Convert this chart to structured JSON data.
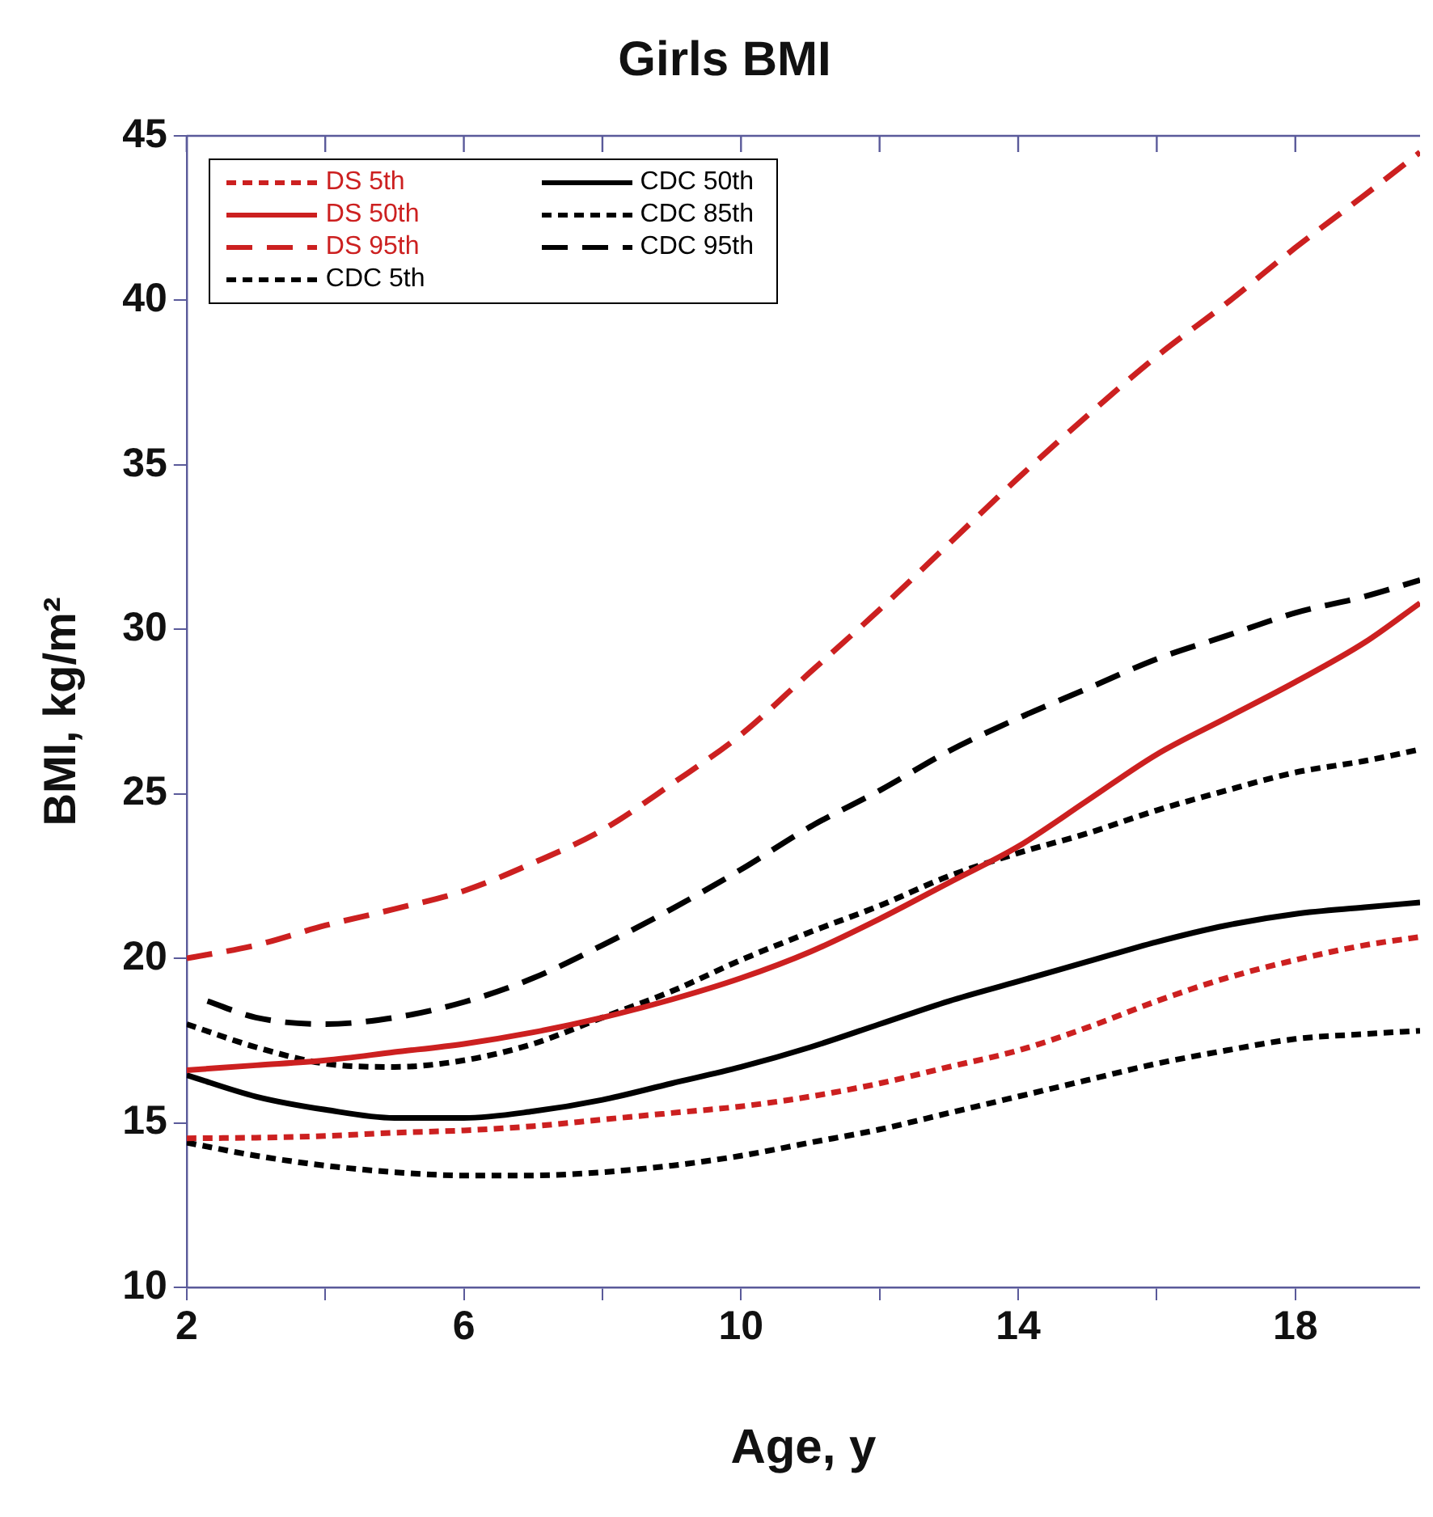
{
  "chart_data": {
    "type": "line",
    "title": "Girls BMI",
    "xlabel": "Age, y",
    "ylabel": "BMI, kg/m²",
    "x": [
      2,
      3,
      4,
      5,
      6,
      7,
      8,
      9,
      10,
      11,
      12,
      13,
      14,
      15,
      16,
      17,
      18,
      19,
      19.8
    ],
    "xlim": [
      2,
      19.8
    ],
    "xticks": [
      2,
      {
        "value": 4,
        "label": null
      },
      6,
      {
        "value": 8,
        "label": null
      },
      10,
      {
        "value": 12,
        "label": null
      },
      14,
      {
        "value": 16,
        "label": null
      },
      18
    ],
    "ylim": [
      10,
      45
    ],
    "yticks": [
      10,
      15,
      20,
      25,
      30,
      35,
      40,
      45
    ],
    "grid": false,
    "legend": "top left",
    "marker": "none",
    "series": [
      {
        "name": "DS 5th",
        "color": "#cc2020",
        "line_style": "dotted",
        "values": [
          14.53,
          14.55,
          14.6,
          14.7,
          14.77,
          14.9,
          15.1,
          15.3,
          15.5,
          15.8,
          16.2,
          16.7,
          17.2,
          17.9,
          18.7,
          19.4,
          19.95,
          20.4,
          20.65
        ]
      },
      {
        "name": "DS 50th",
        "color": "#cc2020",
        "line_style": "solid",
        "values": [
          16.6,
          16.75,
          16.9,
          17.15,
          17.4,
          17.75,
          18.2,
          18.75,
          19.4,
          20.2,
          21.2,
          22.3,
          23.4,
          24.8,
          26.2,
          27.3,
          28.4,
          29.6,
          30.8
        ]
      },
      {
        "name": "DS 95th",
        "color": "#cc2020",
        "line_style": "dashed",
        "values": [
          20.0,
          20.4,
          21.0,
          21.5,
          22.05,
          22.9,
          23.9,
          25.3,
          26.8,
          28.7,
          30.6,
          32.6,
          34.6,
          36.5,
          38.3,
          39.9,
          41.6,
          43.2,
          44.5
        ]
      },
      {
        "name": "CDC 5th",
        "color": "#000000",
        "line_style": "dotted",
        "values": [
          14.4,
          14.0,
          13.7,
          13.5,
          13.4,
          13.4,
          13.5,
          13.7,
          14.0,
          14.4,
          14.8,
          15.3,
          15.8,
          16.3,
          16.8,
          17.2,
          17.55,
          17.7,
          17.8
        ]
      },
      {
        "name": "CDC 50th",
        "color": "#000000",
        "line_style": "solid",
        "values": [
          16.45,
          15.8,
          15.4,
          15.15,
          15.15,
          15.35,
          15.7,
          16.2,
          16.7,
          17.3,
          18.0,
          18.7,
          19.3,
          19.9,
          20.5,
          21.0,
          21.35,
          21.55,
          21.7
        ]
      },
      {
        "name": "CDC 85th",
        "color": "#000000",
        "line_style": "dotted",
        "values": [
          18.0,
          17.3,
          16.8,
          16.7,
          16.9,
          17.4,
          18.2,
          19.0,
          19.95,
          20.8,
          21.6,
          22.5,
          23.2,
          23.8,
          24.5,
          25.1,
          25.65,
          26.0,
          26.35
        ]
      },
      {
        "name": "CDC 95th",
        "color": "#000000",
        "line_style": "dashed",
        "x": [
          2.3,
          3,
          4,
          5,
          6,
          7,
          8,
          9,
          10,
          11,
          12,
          13,
          14,
          15,
          16,
          17,
          18,
          19,
          19.8
        ],
        "values": [
          18.7,
          18.2,
          18.0,
          18.2,
          18.67,
          19.4,
          20.4,
          21.5,
          22.7,
          24.0,
          25.1,
          26.3,
          27.3,
          28.2,
          29.1,
          29.8,
          30.5,
          31.0,
          31.5
        ]
      }
    ]
  }
}
